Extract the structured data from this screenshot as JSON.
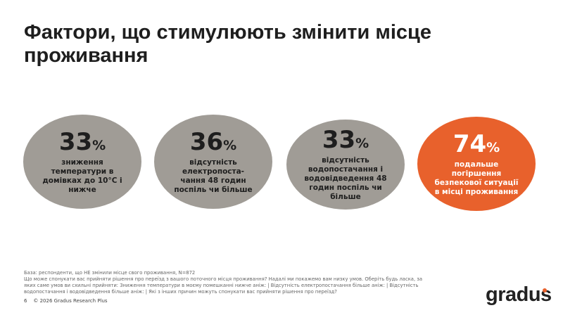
{
  "title": "Фактори, що стимулюють змінити місце проживання",
  "stats": [
    {
      "value": "33",
      "unit": "%",
      "lines": [
        "зниження",
        "температури в",
        "домівках до 10°C і",
        "нижче"
      ]
    },
    {
      "value": "36",
      "unit": "%",
      "lines": [
        "відсутність",
        "електропоста-",
        "чання 48 годин",
        "поспіль чи більше"
      ]
    },
    {
      "value": "33",
      "unit": "%",
      "lines": [
        "відсутність",
        "водопостачання і",
        "водовідведення 48",
        "годин поспіль чи",
        "більше"
      ]
    },
    {
      "value": "74",
      "unit": "%",
      "lines": [
        "подальше",
        "погіршення",
        "безпекової ситуації",
        "в місці проживання"
      ],
      "highlight": true
    }
  ],
  "colors": {
    "neutral": "#a09c96",
    "accent": "#e8612c"
  },
  "footer": {
    "base": "База: респонденти, що НЕ змінили місце свого проживання, N=872",
    "question": "Що може спонукати вас прийняти рішення про переїзд з вашого поточного місця проживання? Надалі ми покажемо вам низку умов. Оберіть будь ласка, за яких саме умов ви схильні прийняти: Зниження температури в моєму помешканні нижче аніж: | Відсутність електропостачання більше аніж: | Відсутність водопостачання і водовідведення більше аніж: | Які з інших причин можуть спонукати вас прийняти рішення про переїзд?",
    "page": "6",
    "copyright": "© 2026 Gradus Research Plus"
  },
  "logo": "gradus"
}
